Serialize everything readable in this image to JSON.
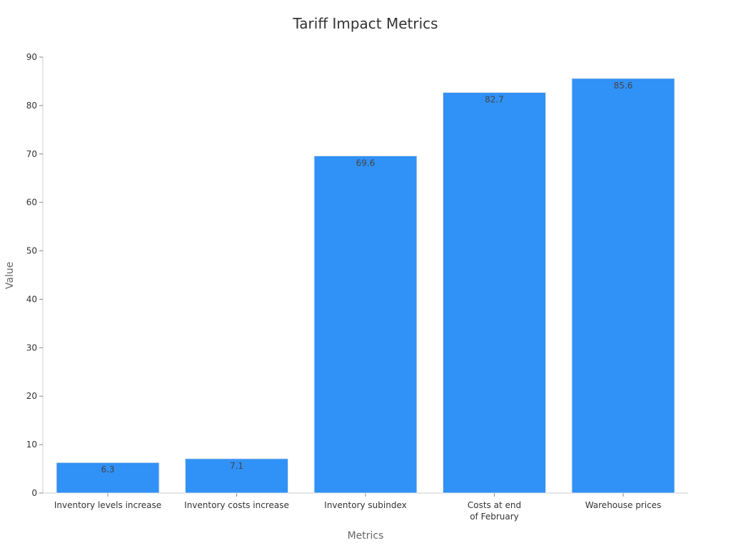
{
  "chart_data": {
    "type": "bar",
    "title": "Tariff Impact Metrics",
    "xlabel": "Metrics",
    "ylabel": "Value",
    "categories": [
      [
        "Inventory levels increase"
      ],
      [
        "Inventory costs increase"
      ],
      [
        "Inventory subindex"
      ],
      [
        "Costs at end",
        "of February"
      ],
      [
        "Warehouse prices"
      ]
    ],
    "values": [
      6.3,
      7.1,
      69.6,
      82.7,
      85.6
    ],
    "value_labels": [
      "6.3",
      "7.1",
      "69.6",
      "82.7",
      "85.6"
    ],
    "ylim": [
      0,
      90
    ],
    "yticks": [
      0,
      10,
      20,
      30,
      40,
      50,
      60,
      70,
      80,
      90
    ],
    "grid": false,
    "bar_color": "#3091f7"
  }
}
